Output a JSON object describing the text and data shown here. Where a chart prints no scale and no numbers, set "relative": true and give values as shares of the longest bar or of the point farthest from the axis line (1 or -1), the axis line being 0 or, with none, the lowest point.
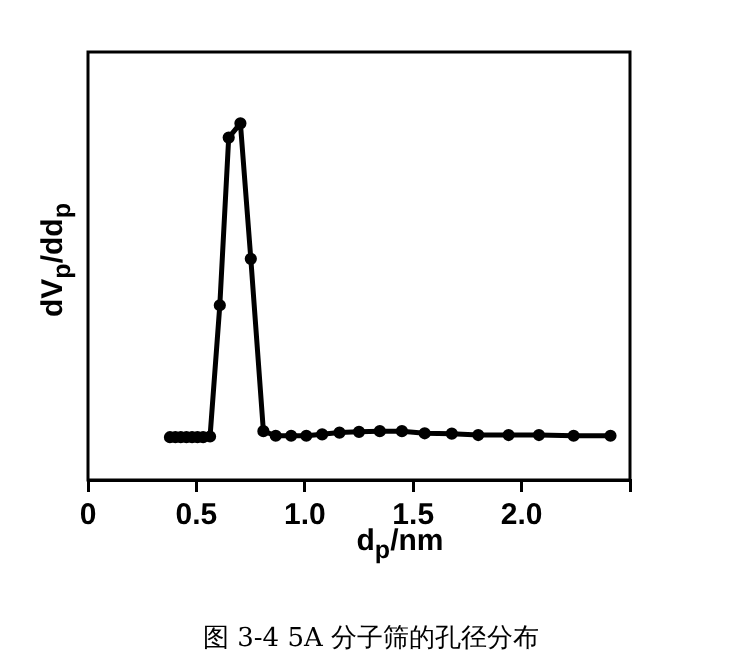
{
  "chart_data": {
    "type": "line",
    "relative": true,
    "xlabel": "d$_{p}$/nm",
    "ylabel": "dV$_{p}$/dd$_{p}$",
    "annotations": [
      "图 3-4 5A 分子筛的孔径分布"
    ],
    "xlim": [
      0,
      2.5
    ],
    "xticks": [
      0,
      0.5,
      {
        "value": 1,
        "label": "1.0"
      },
      1.5,
      {
        "value": 2,
        "label": "2.0"
      },
      {
        "value": 2.5,
        "label": null
      }
    ],
    "marker": "circle",
    "line_style": "solid",
    "grid": false,
    "legend": false,
    "series": [
      {
        "color": "#000000",
        "x": [
          0.378,
          0.403,
          0.428,
          0.454,
          0.48,
          0.505,
          0.531,
          0.563,
          0.608,
          0.649,
          0.703,
          0.751,
          0.809,
          0.866,
          0.937,
          1.007,
          1.08,
          1.16,
          1.25,
          1.346,
          1.448,
          1.553,
          1.678,
          1.8,
          1.94,
          2.08,
          2.24,
          2.41
        ],
        "values": [
          0.12,
          0.12,
          0.12,
          0.12,
          0.12,
          0.12,
          0.12,
          0.122,
          0.49,
          0.96,
          1,
          0.62,
          0.137,
          0.124,
          0.124,
          0.124,
          0.128,
          0.133,
          0.135,
          0.137,
          0.137,
          0.131,
          0.13,
          0.126,
          0.126,
          0.126,
          0.124,
          0.124
        ]
      }
    ]
  }
}
